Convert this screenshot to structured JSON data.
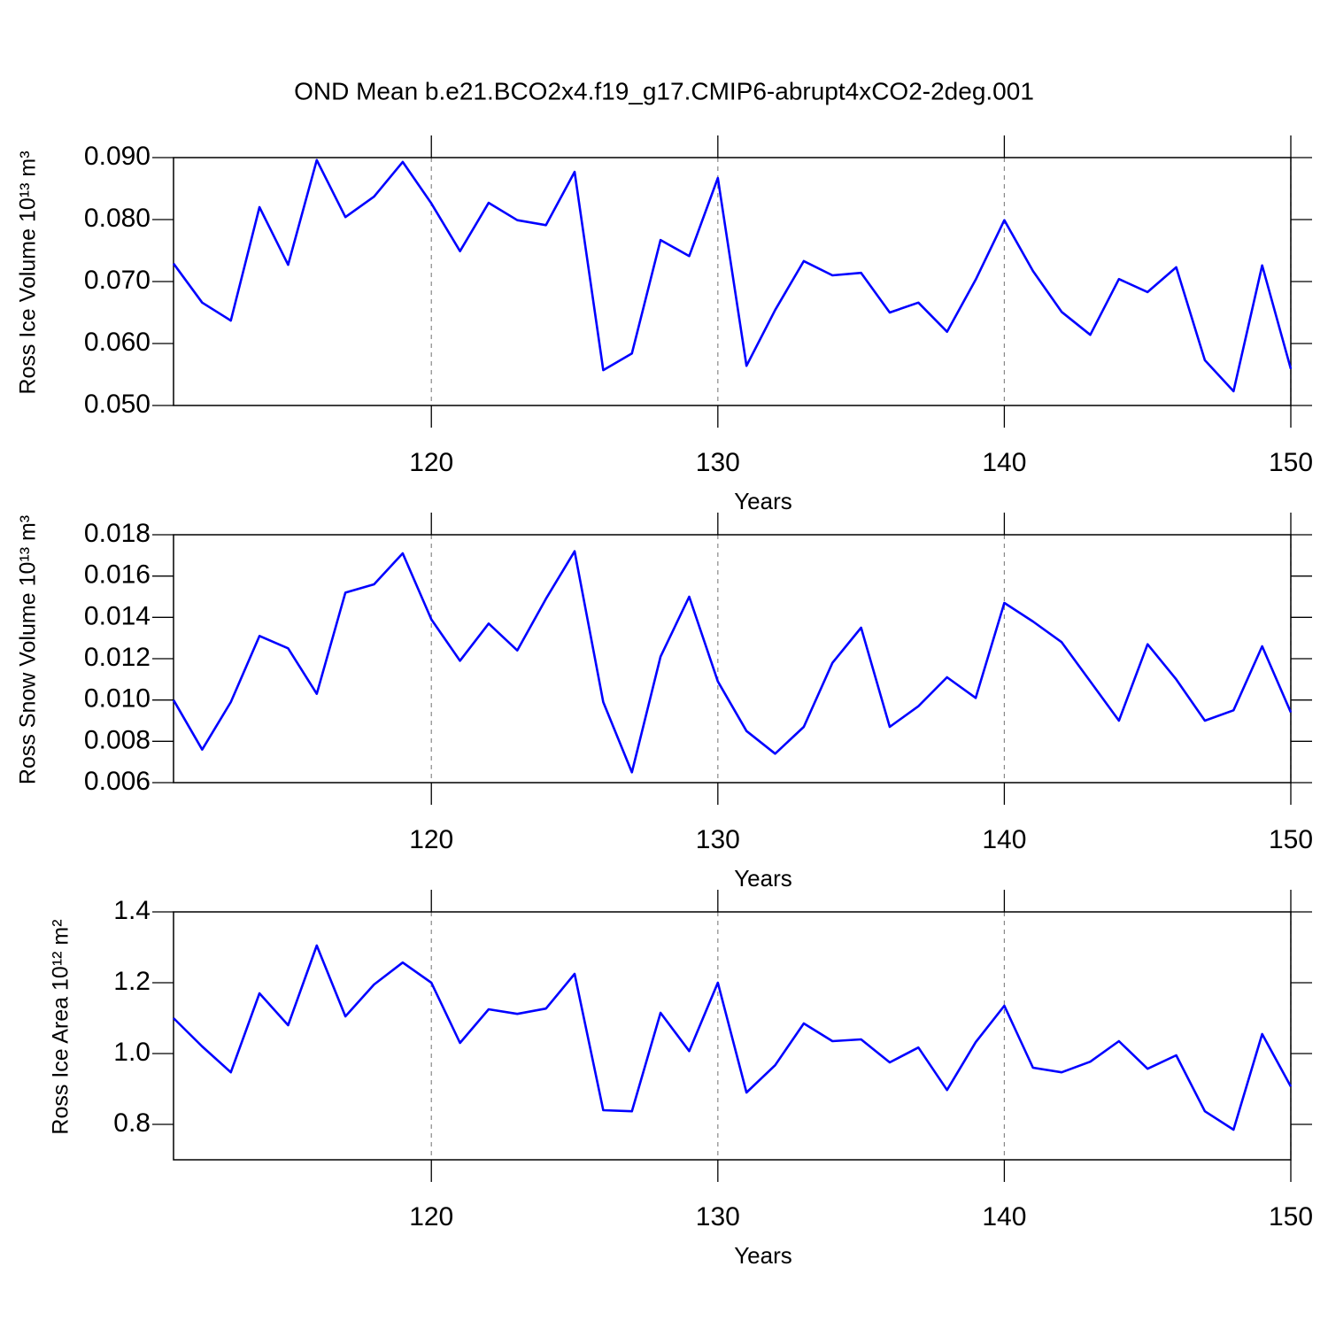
{
  "chart_data": [
    {
      "type": "line",
      "title": "OND Mean b.e21.BCO2x4.f19_g17.CMIP6-abrupt4xCO2-2deg.001",
      "ylabel": "Ross Ice Volume 10¹³ m³",
      "xlabel": "Years",
      "x": [
        111,
        112,
        113,
        114,
        115,
        116,
        117,
        118,
        119,
        120,
        121,
        122,
        123,
        124,
        125,
        126,
        127,
        128,
        129,
        130,
        131,
        132,
        133,
        134,
        135,
        136,
        137,
        138,
        139,
        140,
        141,
        142,
        143,
        144,
        145,
        146,
        147,
        148,
        149,
        150
      ],
      "series": [
        {
          "color": "#0000ff",
          "values": [
            0.0729,
            0.0666,
            0.0637,
            0.082,
            0.0727,
            0.0896,
            0.0804,
            0.0837,
            0.0893,
            0.0826,
            0.0749,
            0.0827,
            0.0799,
            0.0791,
            0.0877,
            0.0557,
            0.0584,
            0.0767,
            0.0741,
            0.0867,
            0.0564,
            0.0654,
            0.0733,
            0.071,
            0.0714,
            0.065,
            0.0666,
            0.0619,
            0.0703,
            0.0799,
            0.0717,
            0.0651,
            0.0614,
            0.0704,
            0.0683,
            0.0723,
            0.0573,
            0.0523,
            0.0726,
            0.0559
          ]
        }
      ],
      "xlim": [
        111,
        150
      ],
      "xticks": [
        120,
        130,
        140,
        150
      ],
      "ylim": [
        0.05,
        0.09
      ],
      "yticks": [
        {
          "value": 0.05,
          "label": "0.050"
        },
        {
          "value": 0.06,
          "label": "0.060"
        },
        {
          "value": 0.07,
          "label": "0.070"
        },
        {
          "value": 0.08,
          "label": "0.080"
        },
        {
          "value": 0.09,
          "label": "0.090"
        }
      ],
      "xgrid": true
    },
    {
      "type": "line",
      "ylabel": "Ross Snow Volume 10¹³ m³",
      "xlabel": "Years",
      "x": [
        111,
        112,
        113,
        114,
        115,
        116,
        117,
        118,
        119,
        120,
        121,
        122,
        123,
        124,
        125,
        126,
        127,
        128,
        129,
        130,
        131,
        132,
        133,
        134,
        135,
        136,
        137,
        138,
        139,
        140,
        141,
        142,
        143,
        144,
        145,
        146,
        147,
        148,
        149,
        150
      ],
      "series": [
        {
          "color": "#0000ff",
          "values": [
            0.01,
            0.0076,
            0.0099,
            0.0131,
            0.0125,
            0.0103,
            0.0152,
            0.0156,
            0.0171,
            0.0139,
            0.0119,
            0.0137,
            0.0124,
            0.0149,
            0.0172,
            0.0099,
            0.0065,
            0.0121,
            0.015,
            0.0109,
            0.0085,
            0.0074,
            0.0087,
            0.0118,
            0.0135,
            0.0087,
            0.0097,
            0.0111,
            0.0101,
            0.0147,
            0.0138,
            0.0128,
            0.0109,
            0.009,
            0.0127,
            0.011,
            0.009,
            0.0095,
            0.0126,
            0.0094
          ]
        }
      ],
      "xlim": [
        111,
        150
      ],
      "xticks": [
        120,
        130,
        140,
        150
      ],
      "ylim": [
        0.006,
        0.018
      ],
      "yticks": [
        {
          "value": 0.006,
          "label": "0.006"
        },
        {
          "value": 0.008,
          "label": "0.008"
        },
        {
          "value": 0.01,
          "label": "0.010"
        },
        {
          "value": 0.012,
          "label": "0.012"
        },
        {
          "value": 0.014,
          "label": "0.014"
        },
        {
          "value": 0.016,
          "label": "0.016"
        },
        {
          "value": 0.018,
          "label": "0.018"
        }
      ],
      "xgrid": true
    },
    {
      "type": "line",
      "ylabel": "Ross Ice Area 10¹² m²",
      "xlabel": "Years",
      "x": [
        111,
        112,
        113,
        114,
        115,
        116,
        117,
        118,
        119,
        120,
        121,
        122,
        123,
        124,
        125,
        126,
        127,
        128,
        129,
        130,
        131,
        132,
        133,
        134,
        135,
        136,
        137,
        138,
        139,
        140,
        141,
        142,
        143,
        144,
        145,
        146,
        147,
        148,
        149,
        150
      ],
      "series": [
        {
          "color": "#0000ff",
          "values": [
            1.1,
            1.02,
            0.947,
            1.17,
            1.08,
            1.305,
            1.105,
            1.195,
            1.257,
            1.2,
            1.03,
            1.125,
            1.112,
            1.127,
            1.225,
            0.84,
            0.837,
            1.115,
            1.007,
            1.2,
            0.89,
            0.967,
            1.085,
            1.035,
            1.04,
            0.975,
            1.017,
            0.897,
            1.032,
            1.135,
            0.96,
            0.947,
            0.977,
            1.035,
            0.957,
            0.995,
            0.837,
            0.785,
            1.055,
            0.907
          ]
        }
      ],
      "xlim": [
        111,
        150
      ],
      "xticks": [
        120,
        130,
        140,
        150
      ],
      "ylim": [
        0.7,
        1.4
      ],
      "yticks": [
        0.8,
        {
          "value": 1.0,
          "label": "1.0"
        },
        1.2,
        1.4
      ],
      "xgrid": true
    }
  ]
}
